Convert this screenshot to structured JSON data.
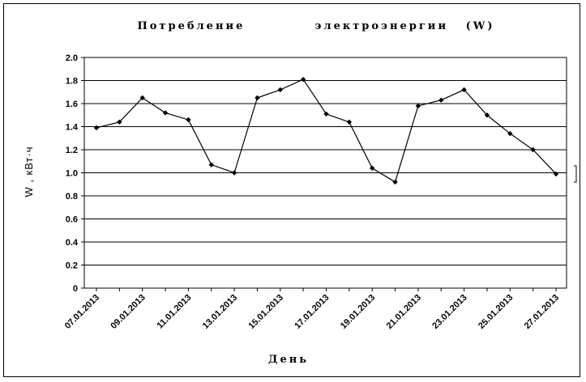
{
  "chart_data": {
    "type": "line",
    "title": "Потребление    электроэнергии (W)",
    "xlabel": "День",
    "ylabel": "W , кВт·ч",
    "ylim": [
      0,
      2.0
    ],
    "ytick_labels": [
      "0",
      "0.2",
      "0.4",
      "0.6",
      "0.8",
      "1.0",
      "1.2",
      "1.4",
      "1.6",
      "1.8",
      "2.0"
    ],
    "xtick_labels": [
      "07.01.2013",
      "09.01.2013",
      "11.01.2013",
      "13.01.2013",
      "15.01.2013",
      "17.01.2013",
      "19.01.2013",
      "21.01.2013",
      "23.01.2013",
      "25.01.2013",
      "27.01.2013"
    ],
    "grid": "horizontal",
    "legend": "right",
    "legend_entries": [
      ""
    ],
    "series": [
      {
        "color": "#000000",
        "x": [
          "07.01.2013",
          "08.01.2013",
          "09.01.2013",
          "10.01.2013",
          "11.01.2013",
          "12.01.2013",
          "13.01.2013",
          "14.01.2013",
          "15.01.2013",
          "16.01.2013",
          "17.01.2013",
          "18.01.2013",
          "19.01.2013",
          "20.01.2013",
          "21.01.2013",
          "22.01.2013",
          "23.01.2013",
          "24.01.2013",
          "25.01.2013",
          "26.01.2013",
          "27.01.2013"
        ],
        "values": [
          1.39,
          1.44,
          1.65,
          1.52,
          1.46,
          1.07,
          1.0,
          1.65,
          1.72,
          1.81,
          1.51,
          1.44,
          1.04,
          0.92,
          1.58,
          1.63,
          1.72,
          1.5,
          1.34,
          1.2,
          0.99
        ]
      }
    ]
  }
}
